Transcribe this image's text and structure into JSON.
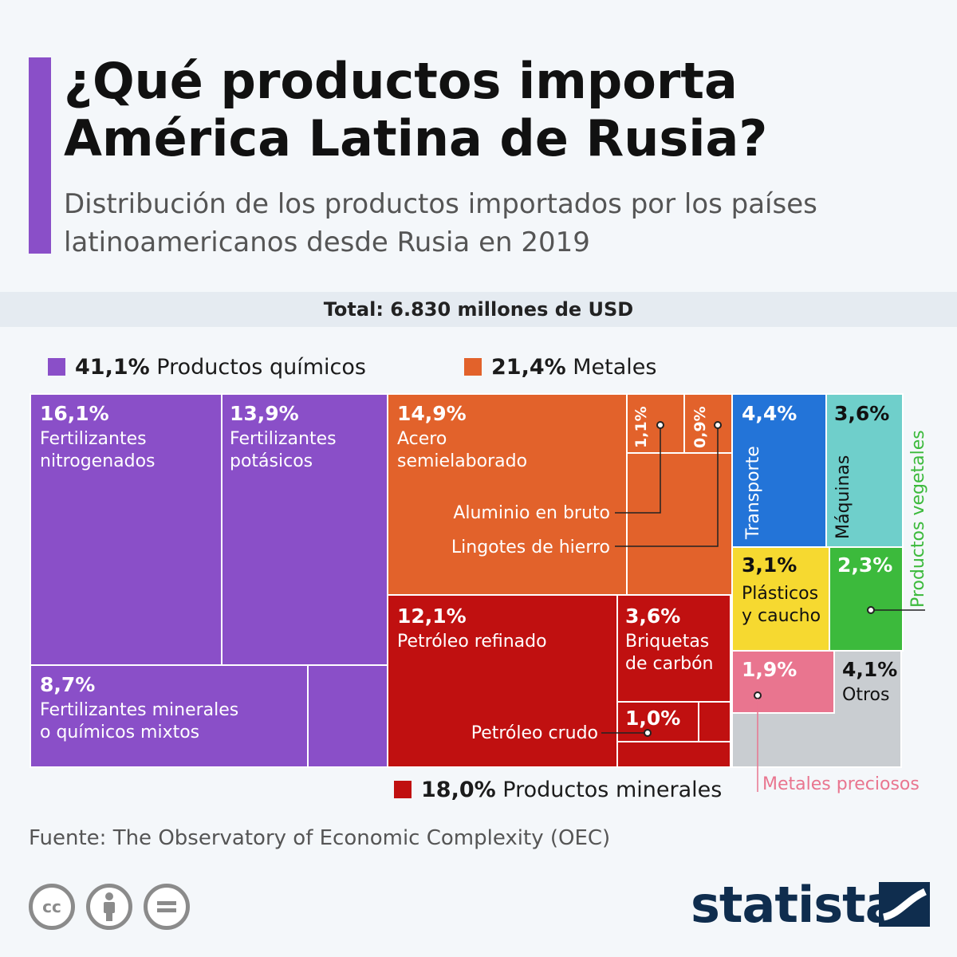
{
  "header": {
    "title": "¿Qué productos importa América Latina de Rusia?",
    "subtitle": "Distribución de los productos importados por los países latinoamericanos desde Rusia en 2019",
    "total": "Total: 6.830 millones de USD"
  },
  "legend": {
    "quimicos": {
      "pct": "41,1%",
      "label": "Productos químicos",
      "color": "#8a4fc8"
    },
    "metales": {
      "pct": "21,4%",
      "label": "Metales",
      "color": "#e2622b"
    },
    "minerales": {
      "pct": "18,0%",
      "label": "Productos minerales",
      "color": "#c01010"
    }
  },
  "chart_data": {
    "type": "treemap",
    "unit": "%",
    "groups": [
      {
        "name": "Productos químicos",
        "value": 41.1,
        "color": "#8a4fc8",
        "children": [
          {
            "name": "Fertilizantes nitrogenados",
            "value": 16.1,
            "label": "16,1%"
          },
          {
            "name": "Fertilizantes potásicos",
            "value": 13.9,
            "label": "13,9%"
          },
          {
            "name": "Fertilizantes minerales o químicos mixtos",
            "value": 8.7,
            "label": "8,7%"
          }
        ]
      },
      {
        "name": "Metales",
        "value": 21.4,
        "color": "#e2622b",
        "children": [
          {
            "name": "Acero semielaborado",
            "value": 14.9,
            "label": "14,9%"
          },
          {
            "name": "Aluminio en bruto",
            "value": 1.1,
            "label": "1,1%"
          },
          {
            "name": "Lingotes de hierro",
            "value": 0.9,
            "label": "0,9%"
          }
        ]
      },
      {
        "name": "Productos minerales",
        "value": 18.0,
        "color": "#c01010",
        "children": [
          {
            "name": "Petróleo refinado",
            "value": 12.1,
            "label": "12,1%"
          },
          {
            "name": "Briquetas de carbón",
            "value": 3.6,
            "label": "3,6%"
          },
          {
            "name": "Petróleo crudo",
            "value": 1.0,
            "label": "1,0%"
          }
        ]
      },
      {
        "name": "Transporte",
        "value": 4.4,
        "label": "4,4%",
        "color": "#2374d8"
      },
      {
        "name": "Máquinas",
        "value": 3.6,
        "label": "3,6%",
        "color": "#6fcfcb"
      },
      {
        "name": "Plásticos y caucho",
        "value": 3.1,
        "label": "3,1%",
        "color": "#f6d930"
      },
      {
        "name": "Productos vegetales",
        "value": 2.3,
        "label": "2,3%",
        "color": "#3cba3c"
      },
      {
        "name": "Metales preciosos",
        "value": 1.9,
        "label": "1,9%",
        "color": "#e9758f"
      },
      {
        "name": "Otros",
        "value": 4.1,
        "label": "4,1%",
        "color": "#c9cdd1"
      }
    ],
    "callouts": {
      "aluminio": "Aluminio en bruto",
      "lingotes": "Lingotes de hierro",
      "crudo": "Petróleo crudo",
      "vegetales": "Productos vegetales",
      "preciosos": "Metales preciosos"
    },
    "text": {
      "nitro": [
        "Fertilizantes",
        "nitrogenados"
      ],
      "potas": [
        "Fertilizantes",
        "potásicos"
      ],
      "mixtos": [
        "Fertilizantes minerales",
        "o químicos mixtos"
      ],
      "acero": [
        "Acero",
        "semielaborado"
      ],
      "refinado": [
        "Petróleo refinado"
      ],
      "briquetas": [
        "Briquetas",
        "de carbón"
      ],
      "plasticos": [
        "Plásticos",
        "y caucho"
      ],
      "otros": [
        "Otros"
      ],
      "transporte": "Transporte",
      "maquinas": "Máquinas"
    }
  },
  "footer": {
    "source": "Fuente: The Observatory of Economic Complexity (OEC)",
    "license_icons": [
      "cc-icon",
      "attribution-icon",
      "no-derivatives-icon"
    ],
    "logo": "statista"
  }
}
